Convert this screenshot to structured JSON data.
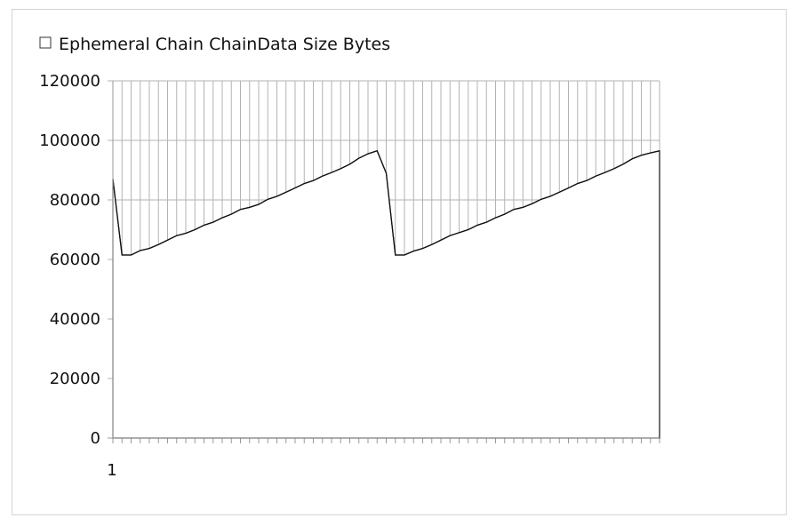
{
  "chart_data": {
    "type": "area",
    "title": "",
    "xlabel": "",
    "ylabel": "",
    "legend": {
      "position": "top-left",
      "entries": [
        "Ephemeral Chain ChainData Size Bytes"
      ]
    },
    "ylim": [
      0,
      120000
    ],
    "y_ticks": [
      "0",
      "20000",
      "40000",
      "60000",
      "80000",
      "100000",
      "120000"
    ],
    "x_tick_labels": [
      "1"
    ],
    "grid": {
      "horizontal": true,
      "vertical": true
    },
    "series": [
      {
        "name": "Ephemeral Chain ChainData Size Bytes",
        "values": [
          87000,
          61500,
          61500,
          63000,
          63700,
          65000,
          66500,
          68000,
          68800,
          70000,
          71500,
          72500,
          74000,
          75200,
          76800,
          77500,
          78500,
          80200,
          81200,
          82600,
          84000,
          85500,
          86500,
          88000,
          89200,
          90500,
          92000,
          94000,
          95500,
          96500,
          89000,
          61500,
          61500,
          62800,
          63700,
          65000,
          66500,
          68000,
          69000,
          70000,
          71500,
          72500,
          74000,
          75200,
          76800,
          77500,
          78700,
          80200,
          81200,
          82600,
          84000,
          85500,
          86500,
          88000,
          89200,
          90500,
          92000,
          93800,
          95000,
          95800,
          96500
        ]
      }
    ]
  },
  "colors": {
    "line": "#111111",
    "grid": "#b3b3b3",
    "axis": "#9a9a9a",
    "fill": "#ffffff"
  }
}
